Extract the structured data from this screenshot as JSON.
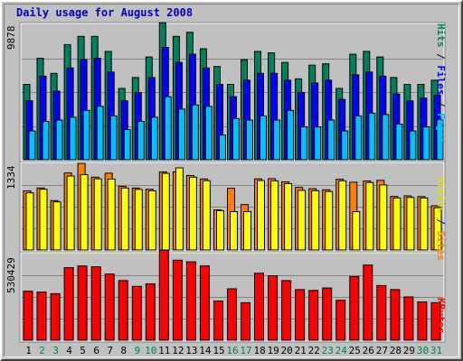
{
  "title": "Daily usage for August 2008",
  "colors": {
    "hits": "#00805C",
    "files": "#0000FF",
    "pages": "#00C0FF",
    "visits": "#FFFF00",
    "sites": "#FF8000",
    "kbytes": "#FF0000",
    "weekend_label": "#00805C",
    "weekday_label": "#000000"
  },
  "legend": {
    "top": {
      "pages": "Pages",
      "sep1": " / ",
      "files": "Files",
      "sep2": " / ",
      "hits": "Hits"
    },
    "mid": {
      "sites": "Sites",
      "sep": " / ",
      "visits": "Visits"
    },
    "bottom": {
      "kbytes": "KBytes"
    }
  },
  "chart_data": {
    "type": "bar",
    "title": "Daily usage for August 2008",
    "categories": [
      "1",
      "2",
      "3",
      "4",
      "5",
      "6",
      "7",
      "8",
      "9",
      "10",
      "11",
      "12",
      "13",
      "14",
      "15",
      "16",
      "17",
      "18",
      "19",
      "20",
      "21",
      "22",
      "23",
      "24",
      "25",
      "26",
      "27",
      "28",
      "29",
      "30",
      "31"
    ],
    "weekend_days": [
      "2",
      "3",
      "9",
      "10",
      "16",
      "17",
      "23",
      "24",
      "30",
      "31"
    ],
    "panels": [
      {
        "name": "hits-files-pages",
        "ymax": 9878,
        "ymax_label": "9878",
        "series": [
          {
            "name": "Hits",
            "values": [
              5500,
              7400,
              6300,
              8400,
              9000,
              9000,
              7900,
              5200,
              6000,
              7500,
              10000,
              9000,
              9300,
              8100,
              6800,
              5500,
              7300,
              7900,
              7800,
              7100,
              5900,
              6900,
              7000,
              5200,
              7700,
              7900,
              7500,
              6000,
              5500,
              5500,
              5800
            ]
          },
          {
            "name": "Files",
            "values": [
              4300,
              6100,
              5000,
              6700,
              7300,
              7400,
              6400,
              4300,
              4900,
              6000,
              8200,
              7100,
              7700,
              6700,
              5500,
              4600,
              5800,
              6300,
              6300,
              5800,
              4900,
              5600,
              5800,
              4400,
              6200,
              6400,
              6100,
              4800,
              4300,
              4500,
              4700
            ]
          },
          {
            "name": "Pages",
            "values": [
              2100,
              2800,
              2900,
              3100,
              3600,
              3900,
              3200,
              2200,
              2800,
              3100,
              4600,
              3700,
              4000,
              3900,
              1800,
              3000,
              2900,
              3200,
              2900,
              3600,
              2400,
              2400,
              2900,
              2100,
              3200,
              3400,
              3300,
              2600,
              2100,
              2400,
              2900
            ]
          }
        ]
      },
      {
        "name": "sites-visits",
        "ymax": 1334,
        "ymax_label": "1334",
        "series": [
          {
            "name": "Sites",
            "values": [
              910,
              955,
              760,
              1186,
              1334,
              1122,
              1182,
              981,
              955,
              935,
              1200,
              1204,
              1147,
              1093,
              617,
              950,
              699,
              1095,
              1098,
              1049,
              965,
              944,
              927,
              1090,
              1043,
              1063,
              1072,
              824,
              834,
              822,
              681
            ]
          },
          {
            "name": "Visits",
            "values": [
              880,
              935,
              740,
              1140,
              1160,
              1097,
              1092,
              955,
              932,
              912,
              1180,
              1265,
              1122,
              1067,
              606,
              590,
              592,
              1068,
              1064,
              1023,
              918,
              912,
              900,
              1065,
              590,
              1040,
              1002,
              800,
              809,
              800,
              650
            ]
          }
        ]
      },
      {
        "name": "kbytes",
        "ymax": 530429,
        "ymax_label": "530429",
        "series": [
          {
            "name": "KBytes",
            "values": [
              300000,
              295000,
              285000,
              445000,
              455000,
              450000,
              405000,
              365000,
              330000,
              345000,
              550000,
              490000,
              480000,
              455000,
              240000,
              315000,
              230000,
              410000,
              395000,
              365000,
              310000,
              305000,
              320000,
              245000,
              390000,
              460000,
              335000,
              310000,
              265000,
              235000,
              230000
            ]
          }
        ]
      }
    ]
  }
}
